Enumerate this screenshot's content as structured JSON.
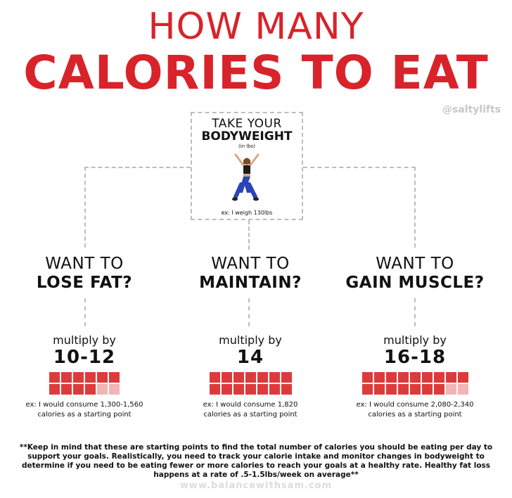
{
  "title": {
    "line1": "HOW MANY",
    "line2": "CALORIES TO EAT"
  },
  "handle": "@saltylifts",
  "center": {
    "line1": "TAKE YOUR",
    "line2": "BODYWEIGHT",
    "unit": "(in lbs)",
    "example": "ex: I weigh 130lbs"
  },
  "options": [
    {
      "want": "WANT TO",
      "goal": "LOSE FAT?",
      "multiply_label": "multiply by",
      "factor": "10-12",
      "blocks_full": 10,
      "blocks_light": 2,
      "example_line1": "ex: I would consume 1,300-1,560",
      "example_line2": "calories as a starting point"
    },
    {
      "want": "WANT TO",
      "goal": "MAINTAIN?",
      "multiply_label": "multiply by",
      "factor": "14",
      "blocks_full": 14,
      "blocks_light": 0,
      "example_line1": "ex: I would consume 1,820",
      "example_line2": "calories as a starting point"
    },
    {
      "want": "WANT TO",
      "goal": "GAIN MUSCLE?",
      "multiply_label": "multiply by",
      "factor": "16-18",
      "blocks_full": 16,
      "blocks_light": 2,
      "example_line1": "ex: I would consume 2,080-2,340",
      "example_line2": "calories as a starting point"
    }
  ],
  "footnote": "**Keep in mind that these are starting points to find the total number of calories you should be eating per day to support your goals. Realistically, you need to track your calorie intake and monitor changes in bodyweight to determine if you need to be eating fewer or more calories to reach your goals at a healthy rate. Healthy fat loss happens at a rate of .5-1.5lbs/week on average**",
  "website": "www.balancewithsam.com",
  "colors": {
    "accent": "#d8232a",
    "block": "#dd3b3b",
    "block_light": "#f2b5b5",
    "dash": "#bdbdbd"
  }
}
